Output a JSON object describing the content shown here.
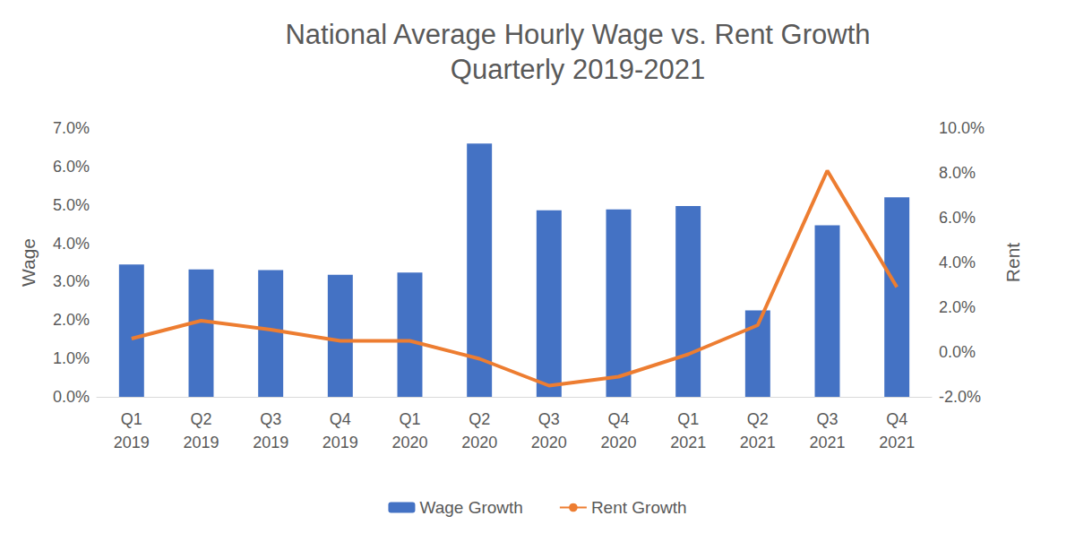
{
  "chart_data": {
    "type": "bar",
    "title": "National Average Hourly Wage vs. Rent Growth",
    "subtitle": "Quarterly 2019-2021",
    "ylabel": "Wage",
    "y2label": "Rent",
    "categories": [
      "Q1\n2019",
      "Q2\n2019",
      "Q3\n2019",
      "Q4\n2019",
      "Q1\n2020",
      "Q2\n2020",
      "Q3\n2020",
      "Q4\n2020",
      "Q1\n2021",
      "Q2\n2021",
      "Q3\n2021",
      "Q4\n2021"
    ],
    "series": [
      {
        "name": "Wage Growth",
        "type": "bar",
        "color": "#4472c4",
        "values": [
          3.45,
          3.32,
          3.3,
          3.18,
          3.24,
          6.6,
          4.86,
          4.88,
          4.97,
          2.25,
          4.47,
          5.2
        ]
      },
      {
        "name": "Rent Growth",
        "type": "line",
        "color": "#ed7d31",
        "axis": "y2",
        "marker": "none",
        "values": [
          0.6,
          1.4,
          1.0,
          0.5,
          0.5,
          -0.3,
          -1.5,
          -1.1,
          -0.1,
          1.2,
          8.1,
          2.9
        ]
      }
    ],
    "ylim": [
      0,
      7
    ],
    "yticks": [
      {
        "value": 0,
        "label": "0.0%"
      },
      {
        "value": 1,
        "label": "1.0%"
      },
      {
        "value": 2,
        "label": "2.0%"
      },
      {
        "value": 3,
        "label": "3.0%"
      },
      {
        "value": 4,
        "label": "4.0%"
      },
      {
        "value": 5,
        "label": "5.0%"
      },
      {
        "value": 6,
        "label": "6.0%"
      },
      {
        "value": 7,
        "label": "7.0%"
      }
    ],
    "y2lim": [
      -2,
      10
    ],
    "y2ticks": [
      {
        "value": -2,
        "label": "-2.0%"
      },
      {
        "value": 0,
        "label": "0.0%"
      },
      {
        "value": 2,
        "label": "2.0%"
      },
      {
        "value": 4,
        "label": "4.0%"
      },
      {
        "value": 6,
        "label": "6.0%"
      },
      {
        "value": 8,
        "label": "8.0%"
      },
      {
        "value": 10,
        "label": "10.0%"
      }
    ],
    "grid": false,
    "legend": "bottom"
  }
}
